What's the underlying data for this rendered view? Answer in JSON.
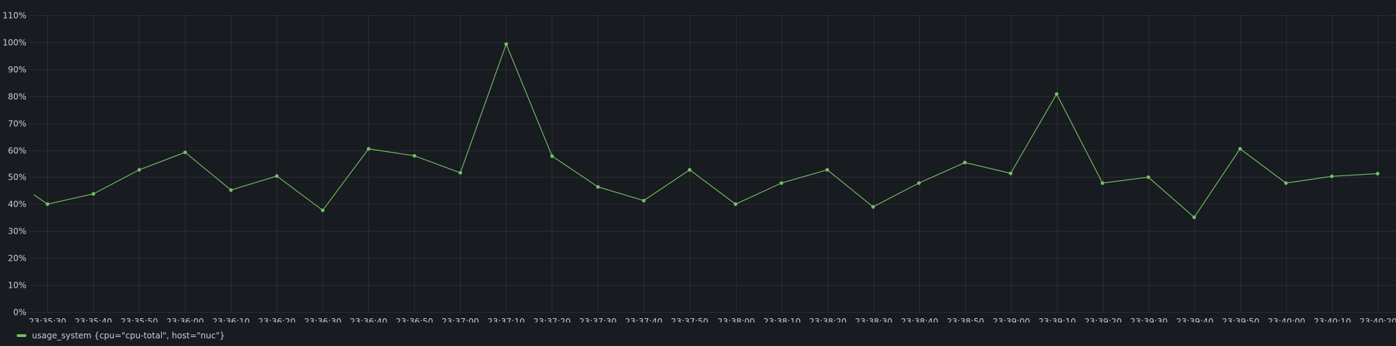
{
  "chart_data": {
    "type": "line",
    "y_ticks": [
      "0%",
      "10%",
      "20%",
      "30%",
      "40%",
      "50%",
      "60%",
      "70%",
      "80%",
      "90%",
      "100%",
      "110%"
    ],
    "ylim": [
      0,
      110
    ],
    "y_unit": "%",
    "x_ticks": [
      "23:35:30",
      "23:35:40",
      "23:35:50",
      "23:36:00",
      "23:36:10",
      "23:36:20",
      "23:36:30",
      "23:36:40",
      "23:36:50",
      "23:37:00",
      "23:37:10",
      "23:37:20",
      "23:37:30",
      "23:37:40",
      "23:37:50",
      "23:38:00",
      "23:38:10",
      "23:38:20",
      "23:38:30",
      "23:38:40",
      "23:38:50",
      "23:39:00",
      "23:39:10",
      "23:39:20",
      "23:39:30",
      "23:39:40",
      "23:39:50",
      "23:40:00",
      "23:40:10",
      "23:40:20"
    ],
    "x_range": [
      "23:35:26",
      "23:40:24"
    ],
    "grid": true,
    "legend_position": "bottom-left",
    "series": [
      {
        "name": "usage_system {cpu=\"cpu-total\", host=\"nuc\"}",
        "color": "#73bf69",
        "x": [
          "23:35:27",
          "23:35:30",
          "23:35:40",
          "23:35:50",
          "23:36:00",
          "23:36:10",
          "23:36:20",
          "23:36:30",
          "23:36:40",
          "23:36:50",
          "23:37:00",
          "23:37:10",
          "23:37:20",
          "23:37:30",
          "23:37:40",
          "23:37:50",
          "23:38:00",
          "23:38:10",
          "23:38:20",
          "23:38:30",
          "23:38:40",
          "23:38:50",
          "23:39:00",
          "23:39:10",
          "23:39:20",
          "23:39:30",
          "23:39:40",
          "23:39:50",
          "23:40:00",
          "23:40:10",
          "23:40:20"
        ],
        "values": [
          43.5,
          40.0,
          43.8,
          52.7,
          59.2,
          45.2,
          50.4,
          37.7,
          60.5,
          57.9,
          51.6,
          99.3,
          57.8,
          46.4,
          41.3,
          52.7,
          40.0,
          47.8,
          52.7,
          39.0,
          47.8,
          55.4,
          51.4,
          80.8,
          47.8,
          50.0,
          35.1,
          60.5,
          47.8,
          50.3,
          51.3
        ],
        "marker_points": "all-but-first"
      }
    ]
  },
  "legend": {
    "series_label": "usage_system {cpu=\"cpu-total\", host=\"nuc\"}"
  }
}
